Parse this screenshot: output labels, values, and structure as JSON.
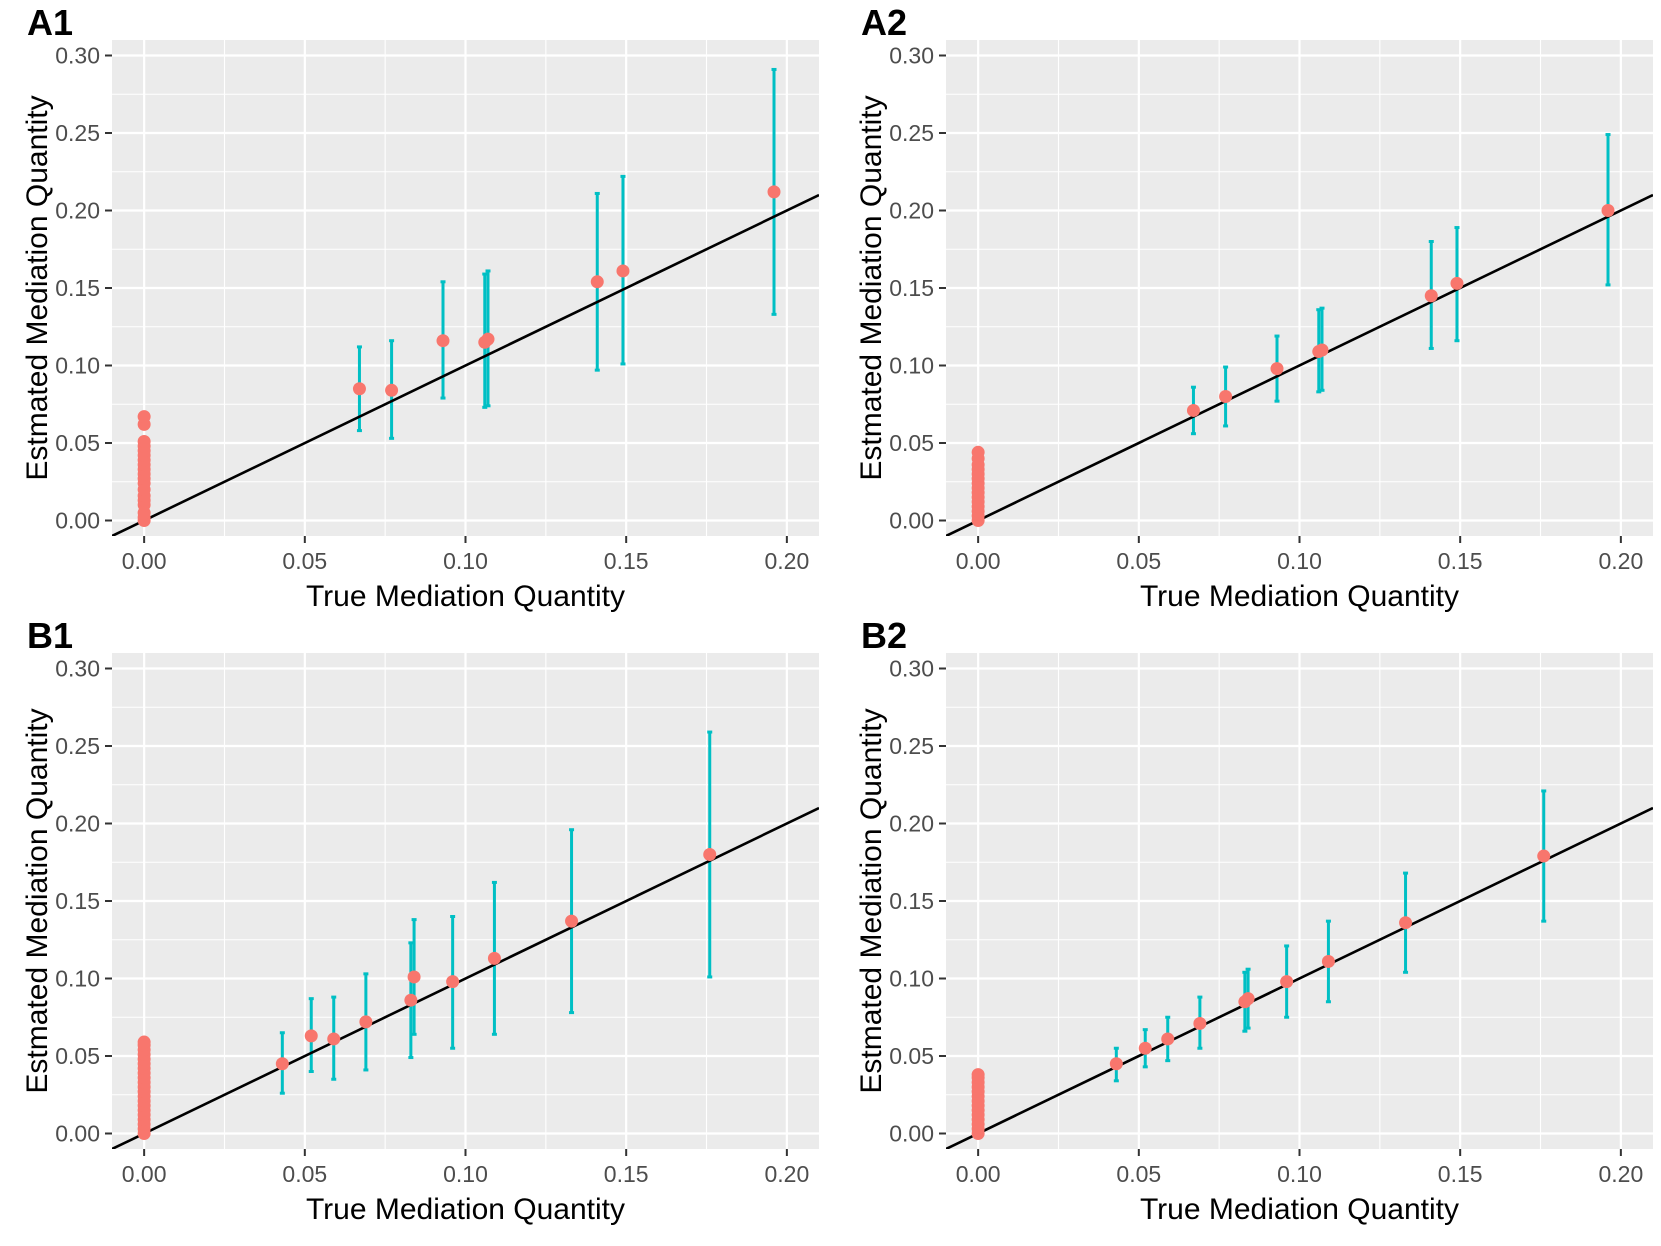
{
  "figure": {
    "xlabel": "True Mediation Quantity",
    "ylabel": "Estmated Mediation Quantity",
    "x_ticks": [
      "0.00",
      "0.05",
      "0.10",
      "0.15",
      "0.20"
    ],
    "y_ticks": [
      "0.00",
      "0.05",
      "0.10",
      "0.15",
      "0.20",
      "0.25",
      "0.30"
    ],
    "colors": {
      "point": "#f8766d",
      "errorbar": "#00bfc4",
      "panel_bg": "#ebebeb",
      "grid": "#ffffff",
      "line": "#000000"
    }
  },
  "chart_data": [
    {
      "id": "A1",
      "title": "A1",
      "type": "scatter",
      "xlabel": "True Mediation Quantity",
      "ylabel": "Estmated Mediation Quantity",
      "xlim": [
        -0.01,
        0.21
      ],
      "ylim": [
        -0.01,
        0.31
      ],
      "xticks": [
        0,
        0.05,
        0.1,
        0.15,
        0.2
      ],
      "yticks": [
        0,
        0.05,
        0.1,
        0.15,
        0.2,
        0.25,
        0.3
      ],
      "reference_line": {
        "intercept": 0,
        "slope": 1
      },
      "points": [
        {
          "x": 0.067,
          "y": 0.085,
          "lo": 0.058,
          "hi": 0.112
        },
        {
          "x": 0.077,
          "y": 0.084,
          "lo": 0.053,
          "hi": 0.116
        },
        {
          "x": 0.093,
          "y": 0.116,
          "lo": 0.079,
          "hi": 0.154
        },
        {
          "x": 0.106,
          "y": 0.115,
          "lo": 0.073,
          "hi": 0.159
        },
        {
          "x": 0.107,
          "y": 0.117,
          "lo": 0.074,
          "hi": 0.161
        },
        {
          "x": 0.141,
          "y": 0.154,
          "lo": 0.097,
          "hi": 0.211
        },
        {
          "x": 0.149,
          "y": 0.161,
          "lo": 0.101,
          "hi": 0.222
        },
        {
          "x": 0.196,
          "y": 0.212,
          "lo": 0.133,
          "hi": 0.291
        }
      ],
      "zero_estimates": [
        0.0,
        0.002,
        0.005,
        0.01,
        0.013,
        0.016,
        0.02,
        0.024,
        0.027,
        0.03,
        0.033,
        0.036,
        0.039,
        0.042,
        0.045,
        0.048,
        0.051,
        0.062,
        0.067
      ]
    },
    {
      "id": "A2",
      "title": "A2",
      "type": "scatter",
      "xlabel": "True Mediation Quantity",
      "ylabel": "Estmated Mediation Quantity",
      "xlim": [
        -0.01,
        0.21
      ],
      "ylim": [
        -0.01,
        0.31
      ],
      "xticks": [
        0,
        0.05,
        0.1,
        0.15,
        0.2
      ],
      "yticks": [
        0,
        0.05,
        0.1,
        0.15,
        0.2,
        0.25,
        0.3
      ],
      "reference_line": {
        "intercept": 0,
        "slope": 1
      },
      "points": [
        {
          "x": 0.067,
          "y": 0.071,
          "lo": 0.056,
          "hi": 0.086
        },
        {
          "x": 0.077,
          "y": 0.08,
          "lo": 0.061,
          "hi": 0.099
        },
        {
          "x": 0.093,
          "y": 0.098,
          "lo": 0.077,
          "hi": 0.119
        },
        {
          "x": 0.106,
          "y": 0.109,
          "lo": 0.083,
          "hi": 0.136
        },
        {
          "x": 0.107,
          "y": 0.11,
          "lo": 0.084,
          "hi": 0.137
        },
        {
          "x": 0.141,
          "y": 0.145,
          "lo": 0.111,
          "hi": 0.18
        },
        {
          "x": 0.149,
          "y": 0.153,
          "lo": 0.116,
          "hi": 0.189
        },
        {
          "x": 0.196,
          "y": 0.2,
          "lo": 0.152,
          "hi": 0.249
        }
      ],
      "zero_estimates": [
        0.0,
        0.003,
        0.006,
        0.009,
        0.012,
        0.015,
        0.018,
        0.021,
        0.024,
        0.027,
        0.03,
        0.033,
        0.036,
        0.04,
        0.044
      ]
    },
    {
      "id": "B1",
      "title": "B1",
      "type": "scatter",
      "xlabel": "True Mediation Quantity",
      "ylabel": "Estmated Mediation Quantity",
      "xlim": [
        -0.01,
        0.21
      ],
      "ylim": [
        -0.01,
        0.31
      ],
      "xticks": [
        0,
        0.05,
        0.1,
        0.15,
        0.2
      ],
      "yticks": [
        0,
        0.05,
        0.1,
        0.15,
        0.2,
        0.25,
        0.3
      ],
      "reference_line": {
        "intercept": 0,
        "slope": 1
      },
      "points": [
        {
          "x": 0.043,
          "y": 0.045,
          "lo": 0.026,
          "hi": 0.065
        },
        {
          "x": 0.052,
          "y": 0.063,
          "lo": 0.04,
          "hi": 0.087
        },
        {
          "x": 0.059,
          "y": 0.061,
          "lo": 0.035,
          "hi": 0.088
        },
        {
          "x": 0.069,
          "y": 0.072,
          "lo": 0.041,
          "hi": 0.103
        },
        {
          "x": 0.083,
          "y": 0.086,
          "lo": 0.049,
          "hi": 0.123
        },
        {
          "x": 0.084,
          "y": 0.101,
          "lo": 0.064,
          "hi": 0.138
        },
        {
          "x": 0.096,
          "y": 0.098,
          "lo": 0.055,
          "hi": 0.14
        },
        {
          "x": 0.109,
          "y": 0.113,
          "lo": 0.064,
          "hi": 0.162
        },
        {
          "x": 0.133,
          "y": 0.137,
          "lo": 0.078,
          "hi": 0.196
        },
        {
          "x": 0.176,
          "y": 0.18,
          "lo": 0.101,
          "hi": 0.259
        }
      ],
      "zero_estimates": [
        0.0,
        0.003,
        0.006,
        0.009,
        0.012,
        0.015,
        0.018,
        0.021,
        0.024,
        0.027,
        0.03,
        0.033,
        0.036,
        0.039,
        0.042,
        0.045,
        0.048,
        0.051,
        0.054,
        0.057,
        0.059
      ]
    },
    {
      "id": "B2",
      "title": "B2",
      "type": "scatter",
      "xlabel": "True Mediation Quantity",
      "ylabel": "Estmated Mediation Quantity",
      "xlim": [
        -0.01,
        0.21
      ],
      "ylim": [
        -0.01,
        0.31
      ],
      "xticks": [
        0,
        0.05,
        0.1,
        0.15,
        0.2
      ],
      "yticks": [
        0,
        0.05,
        0.1,
        0.15,
        0.2,
        0.25,
        0.3
      ],
      "reference_line": {
        "intercept": 0,
        "slope": 1
      },
      "points": [
        {
          "x": 0.043,
          "y": 0.045,
          "lo": 0.034,
          "hi": 0.055
        },
        {
          "x": 0.052,
          "y": 0.055,
          "lo": 0.043,
          "hi": 0.067
        },
        {
          "x": 0.059,
          "y": 0.061,
          "lo": 0.047,
          "hi": 0.075
        },
        {
          "x": 0.069,
          "y": 0.071,
          "lo": 0.055,
          "hi": 0.088
        },
        {
          "x": 0.083,
          "y": 0.085,
          "lo": 0.066,
          "hi": 0.104
        },
        {
          "x": 0.084,
          "y": 0.087,
          "lo": 0.068,
          "hi": 0.106
        },
        {
          "x": 0.096,
          "y": 0.098,
          "lo": 0.075,
          "hi": 0.121
        },
        {
          "x": 0.109,
          "y": 0.111,
          "lo": 0.085,
          "hi": 0.137
        },
        {
          "x": 0.133,
          "y": 0.136,
          "lo": 0.104,
          "hi": 0.168
        },
        {
          "x": 0.176,
          "y": 0.179,
          "lo": 0.137,
          "hi": 0.221
        }
      ],
      "zero_estimates": [
        0.0,
        0.003,
        0.006,
        0.009,
        0.012,
        0.015,
        0.018,
        0.021,
        0.024,
        0.027,
        0.03,
        0.033,
        0.036,
        0.038
      ]
    }
  ]
}
